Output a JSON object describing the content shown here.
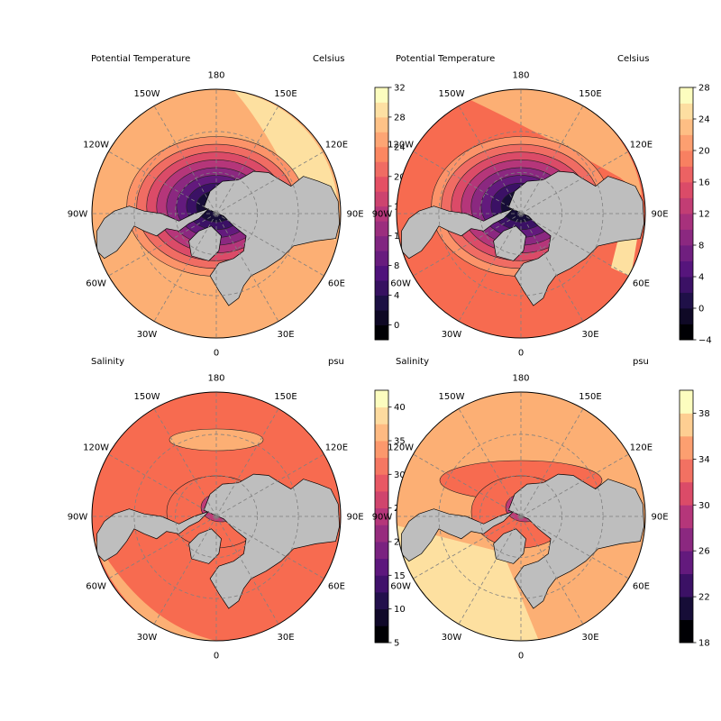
{
  "panels": [
    {
      "id": "pt-1",
      "title": "Potential Temperature",
      "units": "Celsius",
      "colorbar": {
        "ticks": [
          0,
          4,
          8,
          12,
          16,
          20,
          24,
          28,
          32
        ],
        "range": [
          -2,
          32
        ],
        "levels": 17,
        "colormap": "magma"
      }
    },
    {
      "id": "pt-2",
      "title": "Potential Temperature",
      "units": "Celsius",
      "colorbar": {
        "ticks": [
          -4,
          0,
          4,
          8,
          12,
          16,
          20,
          24,
          28
        ],
        "range": [
          -4,
          28
        ],
        "levels": 16,
        "colormap": "magma"
      }
    },
    {
      "id": "sal-1",
      "title": "Salinity",
      "units": "psu",
      "colorbar": {
        "ticks": [
          5,
          10,
          15,
          20,
          25,
          30,
          35,
          40
        ],
        "range": [
          5,
          42.5
        ],
        "levels": 15,
        "colormap": "magma"
      }
    },
    {
      "id": "sal-2",
      "title": "Salinity",
      "units": "psu",
      "colorbar": {
        "ticks": [
          18,
          22,
          26,
          30,
          34,
          38
        ],
        "range": [
          18,
          40
        ],
        "levels": 11,
        "colormap": "magma"
      }
    }
  ],
  "lon_labels": [
    "180",
    "150E",
    "120E",
    "90E",
    "60E",
    "30E",
    "0",
    "30W",
    "60W",
    "90W",
    "120W",
    "150W"
  ],
  "colors": {
    "land": "#bebebe",
    "gridline": "#808080",
    "ocean_warm": "#fcaf74",
    "ocean_hot": "#f76b50",
    "ocean_pale": "#fde0a0"
  }
}
